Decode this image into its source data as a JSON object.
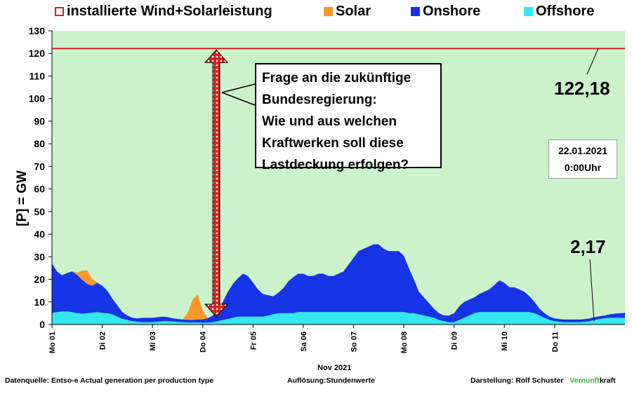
{
  "legend": {
    "installed_label": "installierte Wind+Solarleistung",
    "solar_label": "Solar",
    "onshore_label": "Onshore",
    "offshore_label": "Offshore"
  },
  "colors": {
    "plot_bg": "#ccf2cc",
    "installed": "#d62020",
    "solar": "#f7992b",
    "onshore": "#1535e6",
    "offshore": "#33e8f0",
    "arrow_fill": "#d91e1e",
    "vernunft_green": "#2db52d"
  },
  "annotation": {
    "question": "Frage an die zukünftige\nBundesregierung:\nWie und aus welchen\nKraftwerken soll diese\nLastdeckung erfolgen?",
    "date": "22.01.2021\n0:00Uhr",
    "max_value": "122,18",
    "min_value": "2,17"
  },
  "footer": {
    "source_prefix": "Datenquelle:",
    "source": "Entso-e  Actual generation per production type",
    "resolution_prefix": "Auflösung:",
    "resolution": "Stundenwerte",
    "author_prefix": "Darstellung:",
    "author": "Rolf Schuster",
    "brand_green": "Vernunft",
    "brand_black": "kraft"
  },
  "chart_data": {
    "type": "area",
    "ylabel": "[P] = GW",
    "xlabel": "Nov 2021",
    "ylim": [
      0,
      130
    ],
    "yticks": [
      0,
      10,
      20,
      30,
      40,
      50,
      60,
      70,
      80,
      90,
      100,
      110,
      120,
      130
    ],
    "xlim": [
      0,
      11.4
    ],
    "xticks": [
      {
        "x": 0,
        "label": "Mo 01"
      },
      {
        "x": 1,
        "label": "Di 02"
      },
      {
        "x": 2,
        "label": "Mi 03"
      },
      {
        "x": 3,
        "label": "Do 04"
      },
      {
        "x": 4,
        "label": "Fr 05"
      },
      {
        "x": 5,
        "label": "Sa 06"
      },
      {
        "x": 6,
        "label": "So 07"
      },
      {
        "x": 7,
        "label": "Mo 08"
      },
      {
        "x": 8,
        "label": "Di 09"
      },
      {
        "x": 9,
        "label": "Mi 10"
      },
      {
        "x": 10,
        "label": "Do 11"
      }
    ],
    "grid": false,
    "legend_position": "top",
    "installed": {
      "name": "installierte Wind+Solarleistung",
      "value": 122.18
    },
    "x": [
      0,
      0.1,
      0.2,
      0.3,
      0.4,
      0.5,
      0.6,
      0.7,
      0.8,
      0.9,
      1.0,
      1.1,
      1.2,
      1.3,
      1.4,
      1.5,
      1.6,
      1.7,
      1.8,
      1.9,
      2.0,
      2.1,
      2.2,
      2.3,
      2.4,
      2.5,
      2.6,
      2.7,
      2.8,
      2.9,
      3.0,
      3.1,
      3.2,
      3.3,
      3.4,
      3.5,
      3.6,
      3.7,
      3.8,
      3.9,
      4.0,
      4.1,
      4.2,
      4.3,
      4.4,
      4.5,
      4.6,
      4.7,
      4.8,
      4.9,
      5.0,
      5.1,
      5.2,
      5.3,
      5.4,
      5.5,
      5.6,
      5.7,
      5.8,
      5.9,
      6.0,
      6.1,
      6.2,
      6.3,
      6.4,
      6.5,
      6.6,
      6.7,
      6.8,
      6.9,
      7.0,
      7.1,
      7.2,
      7.3,
      7.4,
      7.5,
      7.6,
      7.7,
      7.8,
      7.9,
      8.0,
      8.1,
      8.2,
      8.3,
      8.4,
      8.5,
      8.6,
      8.7,
      8.8,
      8.9,
      9.0,
      9.1,
      9.2,
      9.3,
      9.4,
      9.5,
      9.6,
      9.7,
      9.8,
      9.9,
      10.0,
      10.1,
      10.2,
      10.3,
      10.4,
      10.5,
      10.6,
      10.7,
      10.8,
      10.9,
      11.0,
      11.1,
      11.2,
      11.3,
      11.4
    ],
    "series": [
      {
        "name": "Offshore",
        "values": [
          5,
          5.5,
          5.8,
          5.8,
          5.5,
          5,
          4.8,
          5,
          5.2,
          5.5,
          5.2,
          5,
          4.5,
          3.5,
          2.5,
          2,
          1.5,
          1.2,
          1,
          1,
          1,
          1.2,
          1.5,
          1.5,
          1.3,
          1.2,
          1,
          0.9,
          0.9,
          0.9,
          0.8,
          0.8,
          1,
          1.5,
          2,
          2.5,
          3,
          3.5,
          3.5,
          3.5,
          3.5,
          3.5,
          3.5,
          4,
          4.5,
          5,
          5,
          5,
          5,
          5.5,
          5.5,
          5.5,
          5.5,
          5.5,
          5.5,
          5.5,
          5.5,
          5.5,
          5.5,
          5.5,
          5.5,
          5.5,
          5.5,
          5.5,
          5.5,
          5.5,
          5.5,
          5.5,
          5.5,
          5.5,
          5.5,
          5,
          5,
          4.5,
          4,
          3.5,
          3,
          2,
          1.5,
          1,
          1,
          2,
          3,
          4,
          5,
          5.5,
          5.5,
          5.5,
          5.5,
          5.5,
          5.5,
          5.5,
          5.5,
          5.5,
          5.5,
          5.5,
          5,
          4,
          3,
          2,
          1.5,
          1.2,
          1,
          1,
          1,
          1,
          1.2,
          1.5,
          2,
          2.5,
          2.8,
          3,
          3,
          3,
          3
        ]
      },
      {
        "name": "Onshore",
        "values": [
          22,
          18,
          16,
          17,
          18,
          17,
          15,
          13,
          12,
          13,
          12,
          10,
          7,
          5,
          3,
          2,
          1.5,
          1.5,
          2,
          2,
          2,
          2,
          2,
          1.8,
          1.5,
          1.3,
          1.2,
          1.2,
          1.2,
          1.3,
          1.5,
          2,
          3,
          5,
          8,
          12,
          15,
          17,
          19,
          18,
          15,
          12,
          10,
          9,
          8,
          9,
          11,
          14,
          16,
          17,
          17,
          16,
          16,
          17,
          17,
          16,
          16,
          17,
          18,
          21,
          24,
          27,
          28,
          29,
          30,
          30,
          28,
          27,
          27,
          27,
          25,
          20,
          15,
          10,
          8,
          6,
          4,
          3,
          2.5,
          3,
          4,
          6,
          7,
          7,
          7,
          8,
          9,
          10,
          12,
          14,
          13,
          11,
          11,
          10,
          9,
          7,
          5,
          3,
          2,
          1.5,
          1.2,
          1.2,
          1.2,
          1.2,
          1.2,
          1.2,
          1.2,
          1.2,
          1.2,
          1.2,
          1.2,
          1.5,
          1.8,
          2.0,
          2.1
        ]
      },
      {
        "name": "Solar",
        "values": [
          0,
          0,
          0,
          0,
          0,
          1,
          4,
          6,
          3,
          0,
          0,
          0,
          0,
          0,
          0,
          0,
          0,
          0,
          0,
          0,
          0,
          0,
          0,
          0,
          0,
          0,
          0,
          3,
          9,
          11,
          4,
          0,
          0,
          0,
          0,
          0,
          0,
          0,
          0,
          0,
          0,
          0,
          0,
          0,
          0,
          0,
          0,
          0,
          0,
          0,
          0,
          0,
          0,
          0,
          0,
          0,
          0,
          0,
          0,
          0,
          0,
          0,
          0,
          0,
          0,
          0,
          0,
          0,
          0,
          0,
          0,
          0,
          0,
          0,
          0,
          0,
          0,
          0,
          0,
          0,
          0,
          0,
          0,
          0,
          0,
          0,
          0,
          0,
          0,
          0,
          0,
          0,
          0,
          0,
          0,
          0,
          0,
          0,
          0,
          0,
          0,
          0,
          0,
          0,
          0,
          0,
          0,
          0,
          0,
          0,
          0,
          0,
          0,
          0,
          0
        ]
      }
    ]
  }
}
